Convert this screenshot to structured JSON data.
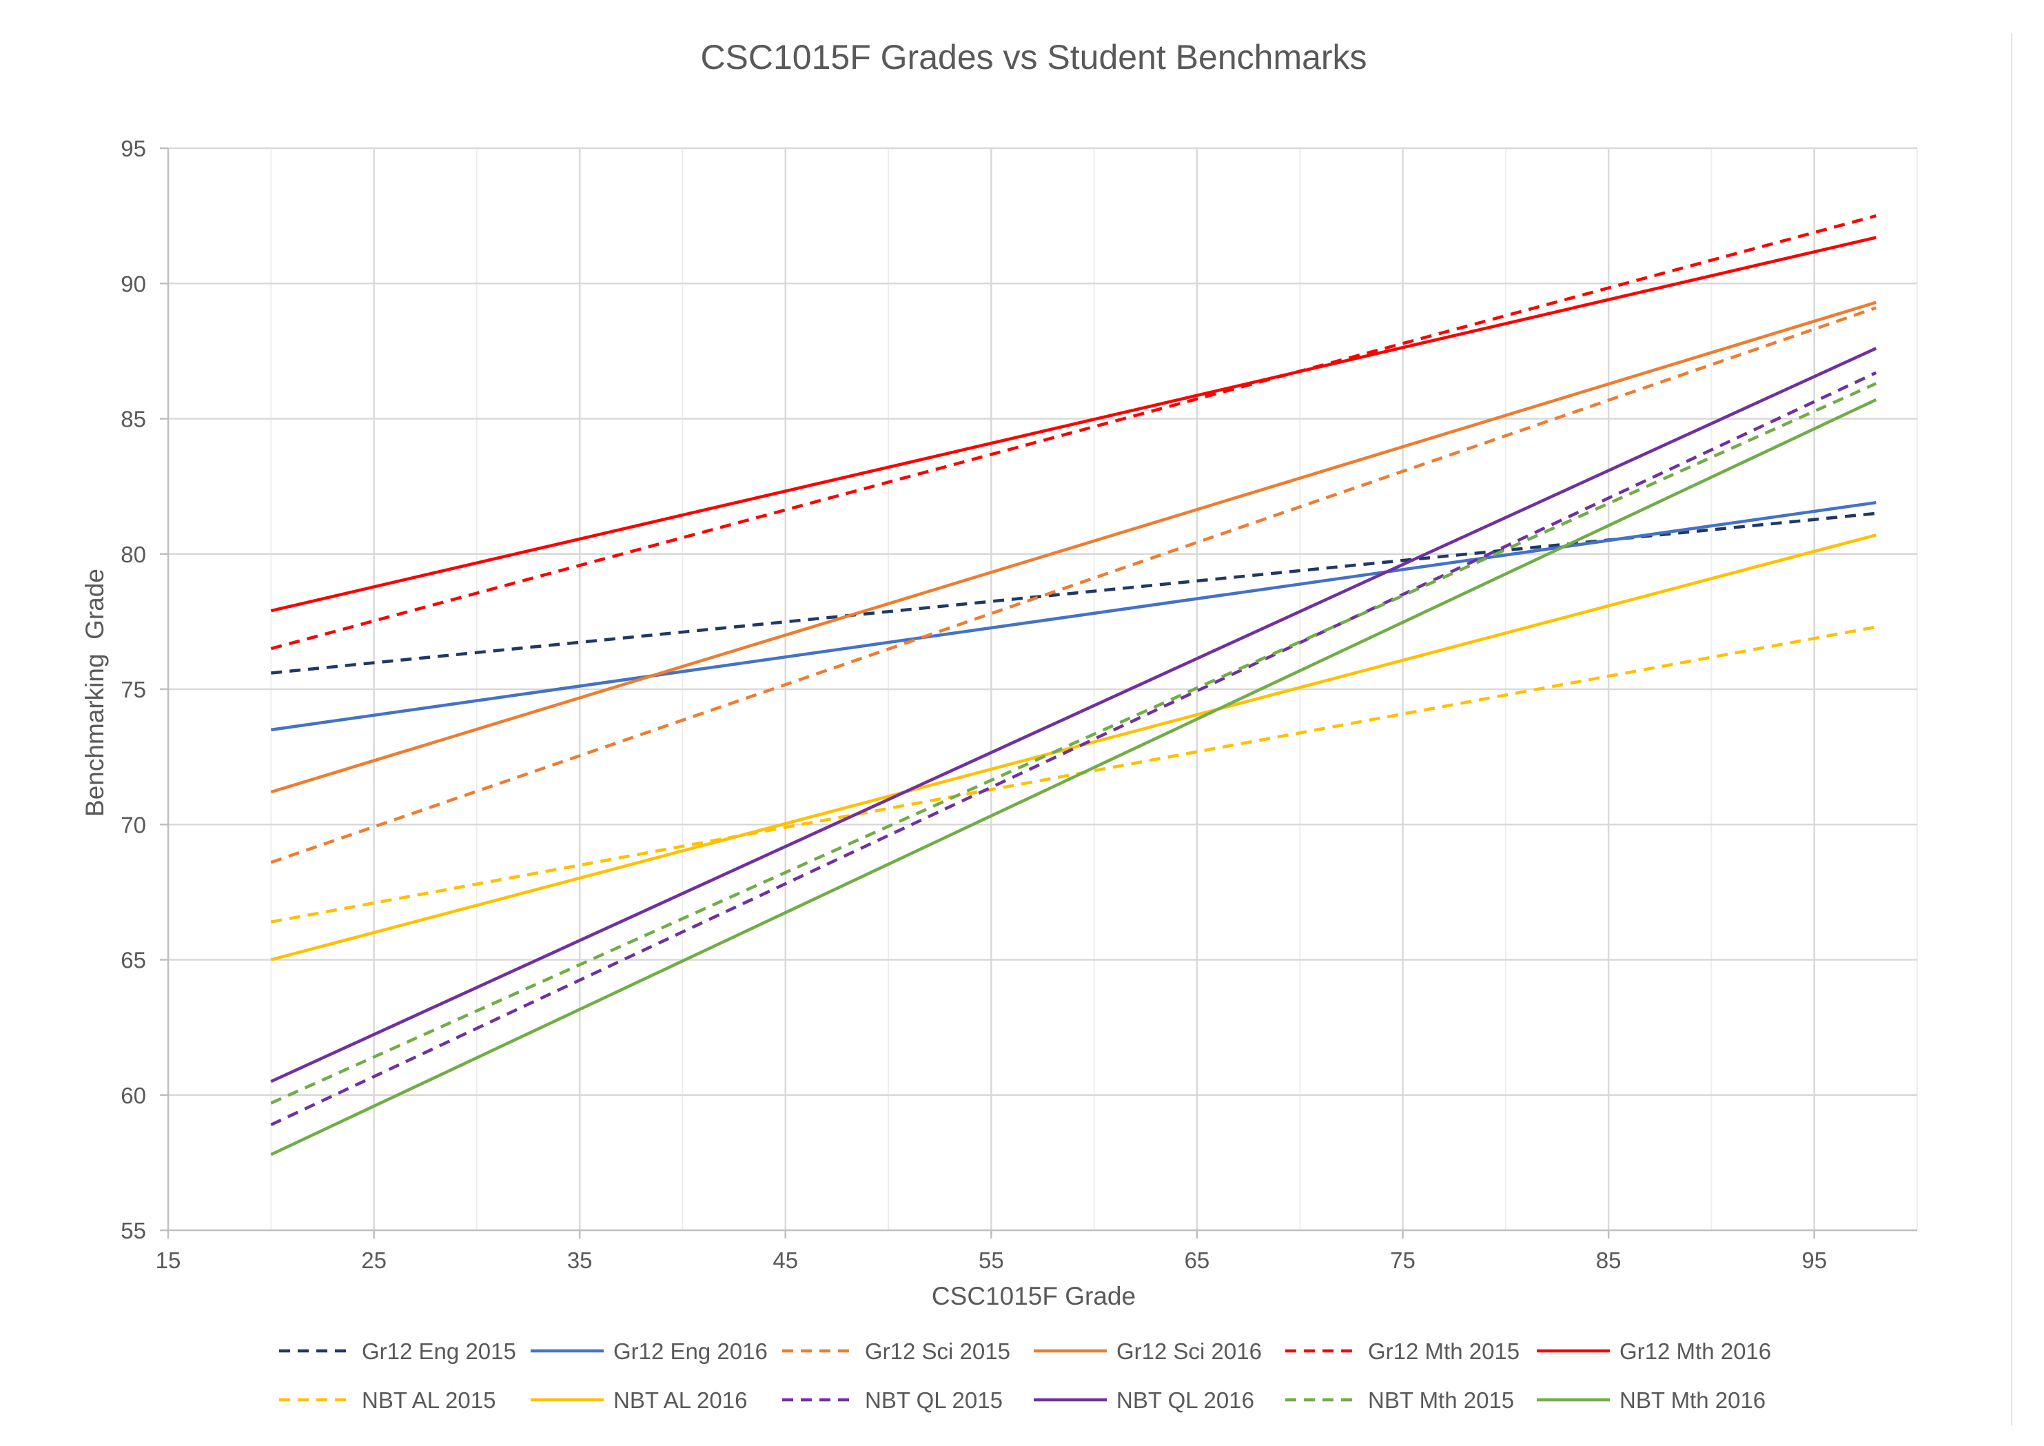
{
  "chart_data": {
    "type": "line",
    "title": "CSC1015F Grades vs Student Benchmarks",
    "xlabel": "CSC1015F Grade",
    "ylabel": "Benchmarking  Grade",
    "xlim": [
      15,
      100
    ],
    "ylim": [
      55,
      95
    ],
    "x_ticks": [
      "15",
      "25",
      "35",
      "45",
      "55",
      "65",
      "75",
      "85",
      "95"
    ],
    "y_ticks": [
      "55",
      "60",
      "65",
      "70",
      "75",
      "80",
      "85",
      "90",
      "95"
    ],
    "grid": true,
    "legend_position": "bottom",
    "series": [
      {
        "name": "Gr12 Eng 2015",
        "color": "#1f3864",
        "style": "dashed",
        "x": [
          20,
          98
        ],
        "y": [
          75.6,
          81.5
        ]
      },
      {
        "name": "Gr12 Eng 2016",
        "color": "#4472c4",
        "style": "solid",
        "x": [
          20,
          98
        ],
        "y": [
          73.5,
          81.9
        ]
      },
      {
        "name": "Gr12 Sci 2015",
        "color": "#ed7d31",
        "style": "dashed",
        "x": [
          20,
          98
        ],
        "y": [
          68.6,
          89.1
        ]
      },
      {
        "name": "Gr12 Sci 2016",
        "color": "#ed7d31",
        "style": "solid",
        "x": [
          20,
          98
        ],
        "y": [
          71.2,
          89.3
        ]
      },
      {
        "name": "Gr12 Mth 2015",
        "color": "#ff0000",
        "style": "dashed",
        "x": [
          20,
          98
        ],
        "y": [
          76.5,
          92.5
        ]
      },
      {
        "name": "Gr12 Mth 2016",
        "color": "#ff0000",
        "style": "solid",
        "x": [
          20,
          98
        ],
        "y": [
          77.9,
          91.7
        ]
      },
      {
        "name": "NBT AL 2015",
        "color": "#ffc000",
        "style": "dashed",
        "x": [
          20,
          98
        ],
        "y": [
          66.4,
          77.3
        ]
      },
      {
        "name": "NBT AL 2016",
        "color": "#ffc000",
        "style": "solid",
        "x": [
          20,
          98
        ],
        "y": [
          65.0,
          80.7
        ]
      },
      {
        "name": "NBT QL 2015",
        "color": "#7030a0",
        "style": "dashed",
        "x": [
          20,
          98
        ],
        "y": [
          58.9,
          86.7
        ]
      },
      {
        "name": "NBT QL 2016",
        "color": "#7030a0",
        "style": "solid",
        "x": [
          20,
          98
        ],
        "y": [
          60.5,
          87.6
        ]
      },
      {
        "name": "NBT Mth 2015",
        "color": "#70ad47",
        "style": "dashed",
        "x": [
          20,
          98
        ],
        "y": [
          59.7,
          86.3
        ]
      },
      {
        "name": "NBT Mth 2016",
        "color": "#70ad47",
        "style": "solid",
        "x": [
          20,
          98
        ],
        "y": [
          57.8,
          85.7
        ]
      }
    ]
  }
}
